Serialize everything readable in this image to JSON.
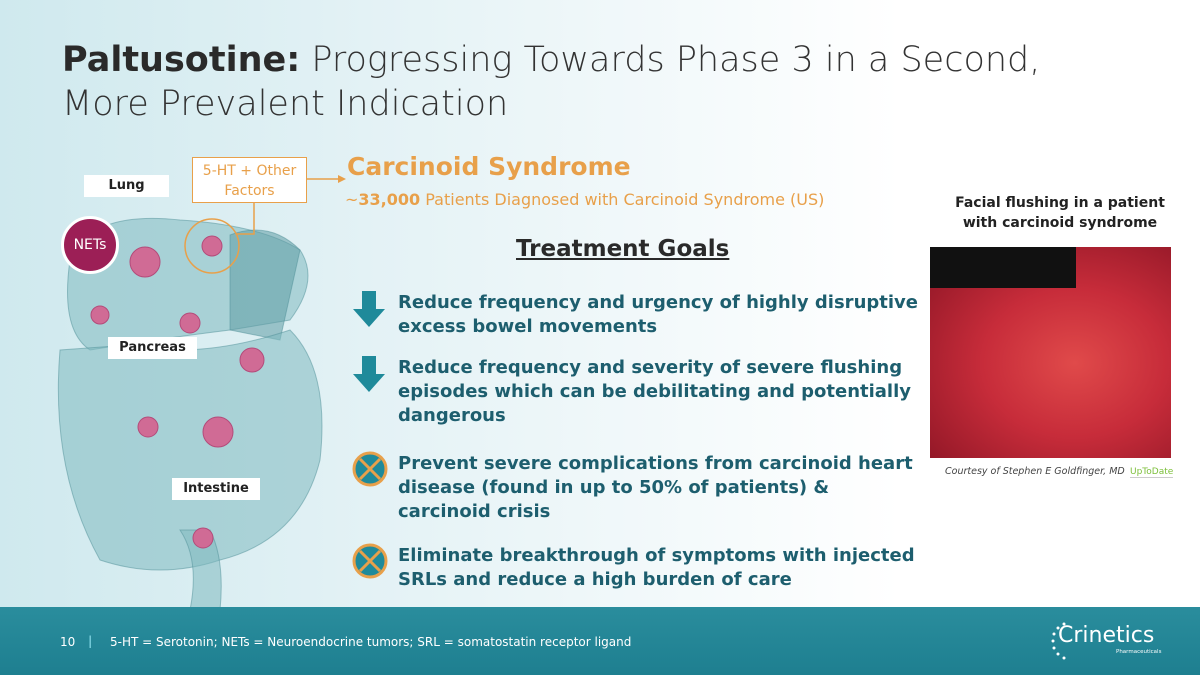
{
  "title": {
    "bold": "Paltusotine:",
    "rest": " Progressing Towards Phase 3 in a Second, More Prevalent Indication"
  },
  "diagram": {
    "lung": "Lung",
    "pancreas": "Pancreas",
    "intestine": "Intestine",
    "nets": "NETs",
    "factors": "5-HT + Other Factors"
  },
  "syndrome": {
    "title": "Carcinoid Syndrome",
    "tilde": "~",
    "count": "33,000",
    "subtitle": " Patients Diagnosed with Carcinoid Syndrome (US)"
  },
  "treatment_goals": {
    "heading": "Treatment Goals",
    "items": [
      {
        "icon": "arrow-down-icon",
        "text": "Reduce frequency and urgency of highly disruptive excess bowel movements"
      },
      {
        "icon": "arrow-down-icon",
        "text": "Reduce frequency and severity of severe flushing episodes which can be debilitating and potentially dangerous"
      },
      {
        "icon": "x-circle-icon",
        "text": "Prevent severe complications from carcinoid heart disease (found in up to 50% of patients) & carcinoid crisis"
      },
      {
        "icon": "x-circle-icon",
        "text": "Eliminate breakthrough of symptoms with injected SRLs and reduce a high burden of care"
      }
    ]
  },
  "photo": {
    "caption": "Facial flushing in a patient with carcinoid syndrome",
    "courtesy": "Courtesy of Stephen E Goldfinger, MD",
    "source": "UpToDate"
  },
  "footer": {
    "page": "10",
    "separator": "|",
    "note": "5-HT = Serotonin; NETs = Neuroendocrine tumors; SRL = somatostatin receptor ligand",
    "logo": "Crinetics",
    "logo_sub": "Pharmaceuticals"
  },
  "colors": {
    "accent": "#e8a04a",
    "teal": "#1f8a9a",
    "goal_text": "#1d5e6e",
    "nets": "#9c1f56"
  }
}
